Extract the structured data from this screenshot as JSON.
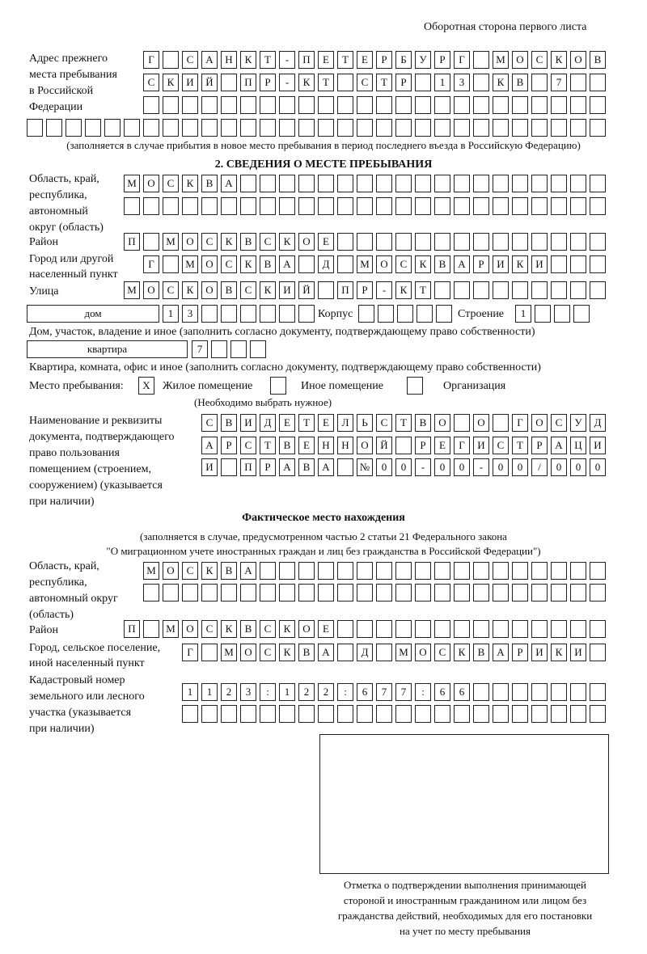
{
  "header": {
    "side": "Оборотная сторона первого листа"
  },
  "prev_address": {
    "label": [
      "Адрес прежнего",
      "места пребывания",
      "в Российской",
      "Федерации"
    ],
    "rows": [
      [
        "Г",
        "",
        "С",
        "А",
        "Н",
        "К",
        "Т",
        "-",
        "П",
        "Е",
        "Т",
        "Е",
        "Р",
        "Б",
        "У",
        "Р",
        "Г",
        "",
        "М",
        "О",
        "С",
        "К",
        "О",
        "В"
      ],
      [
        "С",
        "К",
        "И",
        "Й",
        "",
        "П",
        "Р",
        "-",
        "К",
        "Т",
        "",
        "С",
        "Т",
        "Р",
        "",
        "1",
        "3",
        "",
        "К",
        "В",
        "",
        "7",
        "",
        ""
      ],
      [
        "",
        "",
        "",
        "",
        "",
        "",
        "",
        "",
        "",
        "",
        "",
        "",
        "",
        "",
        "",
        "",
        "",
        "",
        "",
        "",
        "",
        "",
        "",
        ""
      ],
      [
        "",
        "",
        "",
        "",
        "",
        "",
        "",
        "",
        "",
        "",
        "",
        "",
        "",
        "",
        "",
        "",
        "",
        "",
        "",
        "",
        "",
        "",
        "",
        "",
        "",
        "",
        "",
        "",
        "",
        ""
      ]
    ],
    "note": "(заполняется в случае прибытия в новое место пребывания в период последнего въезда в Российскую Федерацию)"
  },
  "section2": {
    "title": "2. СВЕДЕНИЯ О МЕСТЕ ПРЕБЫВАНИЯ",
    "region_label": [
      "Область, край,",
      "республика,",
      "автономный",
      "округ (область)"
    ],
    "region_rows": [
      [
        "М",
        "О",
        "С",
        "К",
        "В",
        "А",
        "",
        "",
        "",
        "",
        "",
        "",
        "",
        "",
        "",
        "",
        "",
        "",
        "",
        "",
        "",
        "",
        "",
        "",
        ""
      ],
      [
        "",
        "",
        "",
        "",
        "",
        "",
        "",
        "",
        "",
        "",
        "",
        "",
        "",
        "",
        "",
        "",
        "",
        "",
        "",
        "",
        "",
        "",
        "",
        "",
        ""
      ]
    ],
    "district_label": "Район",
    "district_row": [
      "П",
      "",
      "М",
      "О",
      "С",
      "К",
      "В",
      "С",
      "К",
      "О",
      "Е",
      "",
      "",
      "",
      "",
      "",
      "",
      "",
      "",
      "",
      "",
      "",
      "",
      "",
      ""
    ],
    "city_label": [
      "Город или другой",
      "населенный пункт"
    ],
    "city_row": [
      "Г",
      "",
      "М",
      "О",
      "С",
      "К",
      "В",
      "А",
      "",
      "Д",
      "",
      "М",
      "О",
      "С",
      "К",
      "В",
      "А",
      "Р",
      "И",
      "К",
      "И",
      "",
      "",
      ""
    ],
    "street_label": "Улица",
    "street_row": [
      "М",
      "О",
      "С",
      "К",
      "О",
      "В",
      "С",
      "К",
      "И",
      "Й",
      "",
      "П",
      "Р",
      "-",
      "К",
      "Т",
      "",
      "",
      "",
      "",
      "",
      "",
      "",
      "",
      ""
    ],
    "house_type": "дом",
    "house_row": [
      "1",
      "3",
      "",
      "",
      "",
      "",
      "",
      ""
    ],
    "korpus_label": "Корпус",
    "korpus_row": [
      "",
      "",
      "",
      "",
      ""
    ],
    "building_label": "Строение",
    "building_row": [
      "1",
      "",
      "",
      ""
    ],
    "house_note": "Дом, участок, владение и иное (заполнить согласно документу, подтверждающему право собственности)",
    "flat_type": "квартира",
    "flat_row": [
      "7",
      "",
      "",
      ""
    ],
    "flat_note": "Квартира, комната, офис и иное (заполнить согласно документу, подтверждающему право собственности)",
    "stay_label": "Место пребывания:",
    "options": [
      {
        "mark": "X",
        "label": "Жилое помещение"
      },
      {
        "mark": "",
        "label": "Иное помещение"
      },
      {
        "mark": "",
        "label": "Организация"
      }
    ],
    "options_note": "(Необходимо выбрать нужное)",
    "doc_label": [
      "Наименование и реквизиты",
      "документа, подтверждающего",
      "право пользования",
      "помещением (строением,",
      "сооружением) (указывается",
      "при наличии)"
    ],
    "doc_rows": [
      [
        "С",
        "В",
        "И",
        "Д",
        "Е",
        "Т",
        "Е",
        "Л",
        "Ь",
        "С",
        "Т",
        "В",
        "О",
        "",
        "О",
        "",
        "Г",
        "О",
        "С",
        "У",
        "Д"
      ],
      [
        "А",
        "Р",
        "С",
        "Т",
        "В",
        "Е",
        "Н",
        "Н",
        "О",
        "Й",
        "",
        "Р",
        "Е",
        "Г",
        "И",
        "С",
        "Т",
        "Р",
        "А",
        "Ц",
        "И"
      ],
      [
        "И",
        "",
        "П",
        "Р",
        "А",
        "В",
        "А",
        "",
        "№",
        "0",
        "0",
        "-",
        "0",
        "0",
        "-",
        "0",
        "0",
        "/",
        "0",
        "0",
        "0"
      ]
    ]
  },
  "actual": {
    "title": "Фактическое место нахождения",
    "subtitle": [
      "(заполняется в случае, предусмотренном частью 2 статьи 21 Федерального закона",
      "\"О миграционном учете иностранных граждан и лиц без гражданства в Российской Федерации\")"
    ],
    "region_label": [
      "Область, край,",
      "республика,",
      "автономный округ",
      "(область)"
    ],
    "region_rows": [
      [
        "М",
        "О",
        "С",
        "К",
        "В",
        "А",
        "",
        "",
        "",
        "",
        "",
        "",
        "",
        "",
        "",
        "",
        "",
        "",
        "",
        "",
        "",
        "",
        "",
        ""
      ],
      [
        "",
        "",
        "",
        "",
        "",
        "",
        "",
        "",
        "",
        "",
        "",
        "",
        "",
        "",
        "",
        "",
        "",
        "",
        "",
        "",
        "",
        "",
        "",
        ""
      ]
    ],
    "district_label": "Район",
    "district_row": [
      "П",
      "",
      "М",
      "О",
      "С",
      "К",
      "В",
      "С",
      "К",
      "О",
      "Е",
      "",
      "",
      "",
      "",
      "",
      "",
      "",
      "",
      "",
      "",
      "",
      "",
      "",
      ""
    ],
    "city_label": [
      "Город, сельское поселение,",
      "иной населенный пункт"
    ],
    "city_row": [
      "Г",
      "",
      "М",
      "О",
      "С",
      "К",
      "В",
      "А",
      "",
      "Д",
      "",
      "М",
      "О",
      "С",
      "К",
      "В",
      "А",
      "Р",
      "И",
      "К",
      "И",
      ""
    ],
    "cadastre_label": [
      "Кадастровый номер",
      "земельного или лесного",
      "участка (указывается",
      "при наличии)"
    ],
    "cadastre_rows": [
      [
        "1",
        "1",
        "2",
        "3",
        ":",
        "1",
        "2",
        "2",
        ":",
        "6",
        "7",
        "7",
        ":",
        "6",
        "6",
        "",
        "",
        "",
        "",
        "",
        "",
        ""
      ],
      [
        "",
        "",
        "",
        "",
        "",
        "",
        "",
        "",
        "",
        "",
        "",
        "",
        "",
        "",
        "",
        "",
        "",
        "",
        "",
        "",
        "",
        ""
      ]
    ]
  },
  "stamp": {
    "caption": [
      "Отметка о подтверждении выполнения принимающей",
      "стороной и иностранным гражданином или лицом без",
      "гражданства действий, необходимых для его постановки",
      "на учет по месту пребывания"
    ]
  }
}
